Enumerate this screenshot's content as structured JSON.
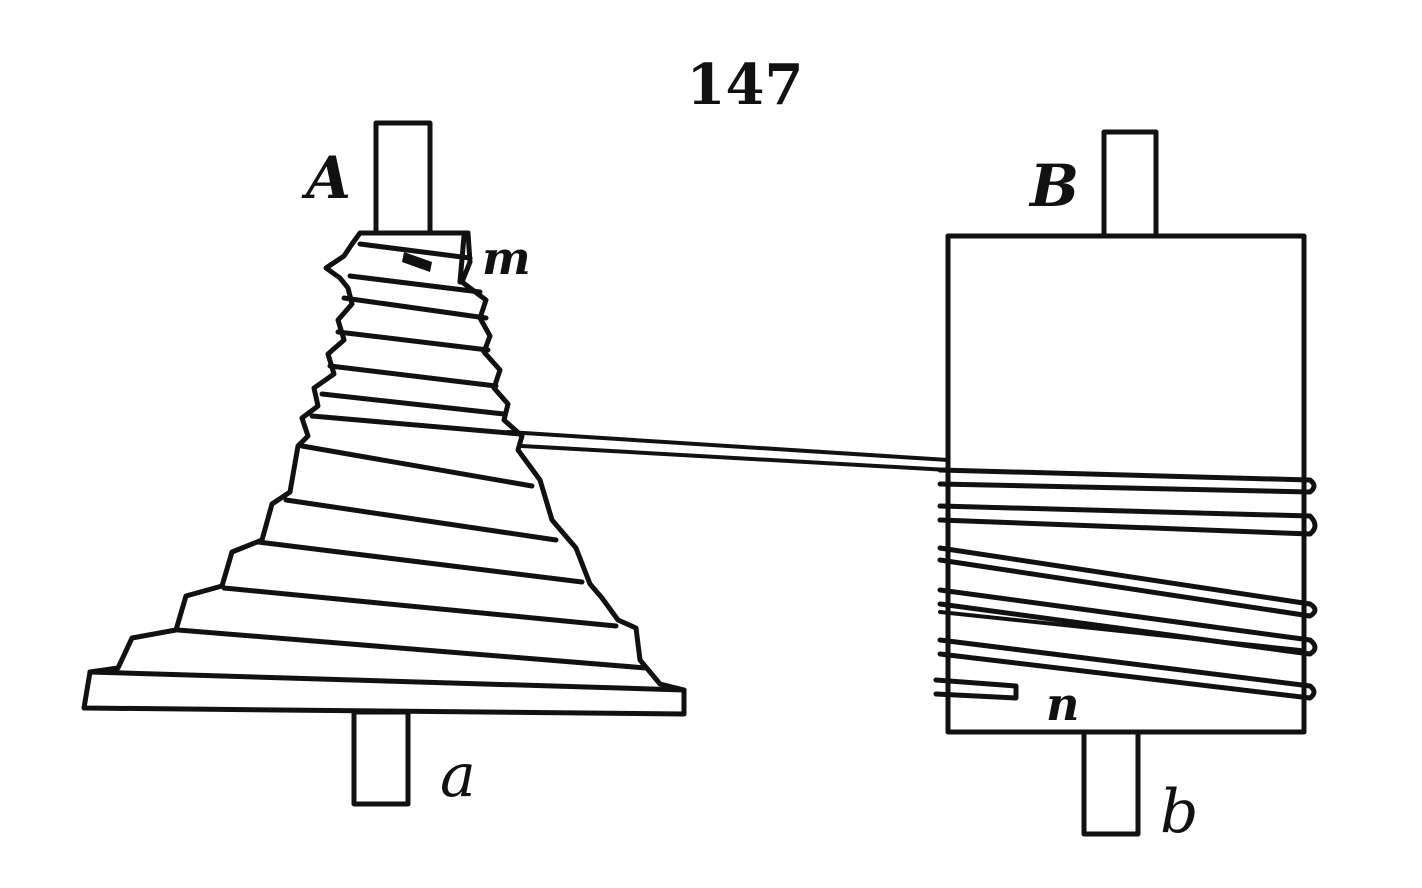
{
  "figure": {
    "number": "147",
    "labels": {
      "cone_pulley": "A",
      "cone_shaft_end": "a",
      "cone_string_end": "m",
      "drum": "B",
      "drum_shaft_end": "b",
      "drum_string_end": "n"
    },
    "ink_color": "#111111",
    "background_color": "#ffffff"
  }
}
